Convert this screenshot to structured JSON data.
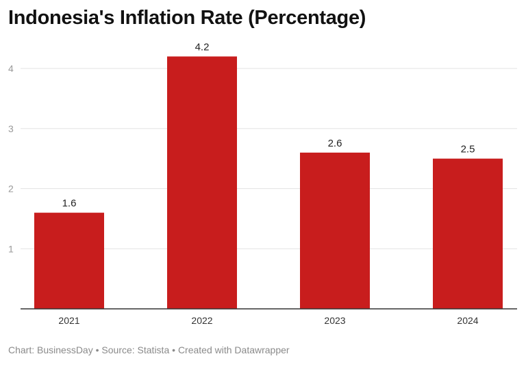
{
  "title": "Indonesia's Inflation Rate (Percentage)",
  "footer": {
    "chart_label": "Chart:",
    "chart_source": "BusinessDay",
    "source_label": "Source:",
    "source": "Statista",
    "created": "Created with Datawrapper",
    "separator": " • "
  },
  "colors": {
    "bar": "#c81d1d",
    "grid": "#e3e3e3",
    "axis": "#333333"
  },
  "chart_data": {
    "type": "bar",
    "title": "Indonesia's Inflation Rate (Percentage)",
    "categories": [
      "2021",
      "2022",
      "2023",
      "2024"
    ],
    "values": [
      1.6,
      4.2,
      2.6,
      2.5
    ],
    "value_labels": [
      "1.6",
      "4.2",
      "2.6",
      "2.5"
    ],
    "yticks": [
      1,
      2,
      3,
      4
    ],
    "ylim": [
      0,
      4.5
    ],
    "xlabel": "",
    "ylabel": "",
    "grid": true,
    "legend": "none"
  }
}
